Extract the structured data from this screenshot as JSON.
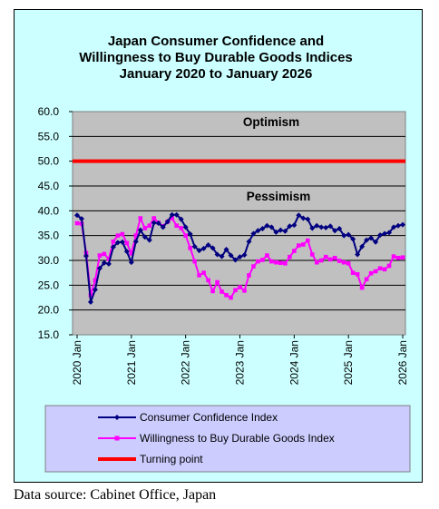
{
  "chart_data": {
    "type": "line",
    "title": [
      "Japan Consumer Confidence and",
      "Willingness to Buy Durable Goods Indices",
      "January 2020 to January 2026"
    ],
    "ylim": [
      15,
      60
    ],
    "yticks": [
      "60.0",
      "55.0",
      "50.0",
      "45.0",
      "40.0",
      "35.0",
      "30.0",
      "25.0",
      "20.0",
      "15.0"
    ],
    "xticks": [
      "2020 Jan",
      "2021 Jan",
      "2022 Jan",
      "2023 Jan",
      "2024 Jan",
      "2025 Jan",
      "2026 Jan"
    ],
    "annotations": {
      "upper": "Optimism",
      "lower": "Pessimism"
    },
    "grid": true,
    "legend_position": "bottom",
    "series": [
      {
        "name": "Consumer Confidence Index",
        "color": "#000080",
        "values": [
          39.1,
          38.4,
          30.9,
          21.6,
          24.1,
          28.4,
          29.5,
          29.3,
          32.7,
          33.6,
          33.7,
          31.8,
          29.6,
          33.8,
          36.1,
          34.7,
          34.1,
          37.6,
          37.5,
          36.7,
          37.8,
          39.2,
          39.2,
          38.3,
          36.7,
          35.3,
          32.8,
          32.0,
          32.4,
          33.1,
          32.5,
          31.2,
          30.8,
          32.2,
          31.0,
          30.1,
          30.7,
          31.1,
          33.8,
          35.4,
          36.0,
          36.4,
          37.0,
          36.7,
          35.7,
          36.1,
          35.9,
          36.9,
          37.1,
          39.1,
          38.5,
          38.3,
          36.5,
          37.0,
          36.7,
          36.6,
          36.9,
          36.0,
          36.4,
          35.0,
          35.2,
          34.3,
          31.2,
          32.8,
          34.1,
          34.5,
          33.7,
          35.1,
          35.4,
          35.6,
          36.7,
          37.0,
          37.2
        ]
      },
      {
        "name": "Willingness to Buy Durable Goods Index",
        "color": "#ff00ff",
        "values": [
          37.5,
          37.4,
          31.5,
          23.0,
          26.0,
          31.0,
          31.3,
          30.3,
          33.8,
          35.0,
          35.3,
          33.5,
          31.4,
          35.0,
          38.5,
          36.5,
          37.0,
          38.5,
          37.6,
          36.9,
          37.8,
          38.5,
          37.0,
          36.5,
          35.0,
          32.5,
          29.8,
          27.0,
          27.5,
          26.0,
          23.8,
          25.6,
          23.7,
          23.0,
          22.5,
          24.0,
          24.6,
          23.9,
          27.0,
          28.8,
          29.8,
          30.1,
          31.0,
          29.8,
          29.6,
          29.5,
          29.4,
          30.7,
          31.9,
          33.0,
          33.2,
          34.0,
          31.2,
          29.6,
          30.0,
          30.7,
          30.2,
          30.5,
          29.9,
          29.6,
          29.4,
          27.5,
          27.2,
          24.5,
          26.2,
          27.4,
          27.8,
          28.4,
          28.2,
          28.9,
          30.8,
          30.5,
          30.6
        ]
      },
      {
        "name": "Turning point",
        "color": "#ff0000",
        "values": [
          50,
          50
        ]
      }
    ]
  },
  "source": "Data source: Cabinet Office, Japan"
}
